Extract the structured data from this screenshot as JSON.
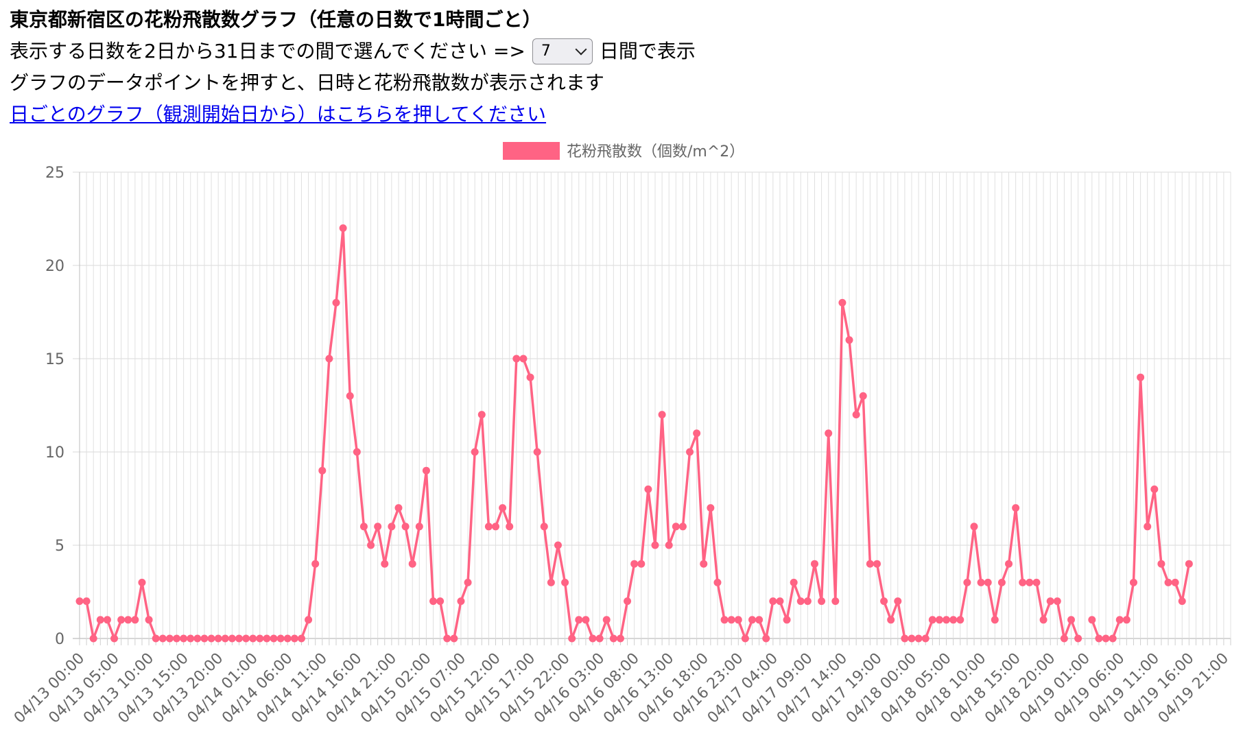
{
  "header": {
    "title": "東京都新宿区の花粉飛散数グラフ（任意の日数で1時間ごと）",
    "select_prefix": "表示する日数を2日から31日までの間で選んでください =>",
    "select_value": "7",
    "select_suffix": "日間で表示",
    "hint": "グラフのデータポイントを押すと、日時と花粉飛散数が表示されます",
    "daily_link": "日ごとのグラフ（観測開始日から）はこちらを押してください"
  },
  "colors": {
    "series": "#ff6384",
    "grid": "#e0e0e0",
    "axis_text": "#666666",
    "link": "#0000ee"
  },
  "chart_data": {
    "type": "line",
    "legend_position": "top",
    "grid": true,
    "series": [
      {
        "name": "花粉飛散数（個数/m^2）",
        "values": [
          2,
          2,
          0,
          1,
          1,
          0,
          1,
          1,
          1,
          3,
          1,
          0,
          0,
          0,
          0,
          0,
          0,
          0,
          0,
          0,
          0,
          0,
          0,
          0,
          0,
          0,
          0,
          0,
          0,
          0,
          0,
          0,
          0,
          1,
          4,
          9,
          15,
          18,
          22,
          13,
          10,
          6,
          5,
          6,
          4,
          6,
          7,
          6,
          4,
          6,
          9,
          2,
          2,
          0,
          0,
          2,
          3,
          10,
          12,
          6,
          6,
          7,
          6,
          15,
          15,
          14,
          10,
          6,
          3,
          5,
          3,
          0,
          1,
          1,
          0,
          0,
          1,
          0,
          0,
          2,
          4,
          4,
          8,
          5,
          12,
          5,
          6,
          6,
          10,
          11,
          4,
          7,
          3,
          1,
          1,
          1,
          0,
          1,
          1,
          0,
          2,
          2,
          1,
          3,
          2,
          2,
          4,
          2,
          11,
          2,
          18,
          16,
          12,
          13,
          4,
          4,
          2,
          1,
          2,
          0,
          0,
          0,
          0,
          1,
          1,
          1,
          1,
          1,
          3,
          6,
          3,
          3,
          1,
          3,
          4,
          7,
          3,
          3,
          3,
          1,
          2,
          2,
          0,
          1,
          0,
          null,
          1,
          0,
          0,
          0,
          1,
          1,
          3,
          14,
          6,
          8,
          4,
          3,
          3,
          2,
          4
        ]
      }
    ],
    "x_tick_labels": [
      "04/13 00:00",
      "04/13 05:00",
      "04/13 10:00",
      "04/13 15:00",
      "04/13 20:00",
      "04/14 01:00",
      "04/14 06:00",
      "04/14 11:00",
      "04/14 16:00",
      "04/14 21:00",
      "04/15 02:00",
      "04/15 07:00",
      "04/15 12:00",
      "04/15 17:00",
      "04/15 22:00",
      "04/16 03:00",
      "04/16 08:00",
      "04/16 13:00",
      "04/16 18:00",
      "04/16 23:00",
      "04/17 04:00",
      "04/17 09:00",
      "04/17 14:00",
      "04/17 19:00",
      "04/18 00:00",
      "04/18 05:00",
      "04/18 10:00",
      "04/18 15:00",
      "04/18 20:00",
      "04/19 01:00",
      "04/19 06:00",
      "04/19 11:00",
      "04/19 16:00",
      "04/19 21:00"
    ],
    "x_tick_step_hours": 5,
    "x_range_hours": [
      0,
      166
    ],
    "y_ticks": [
      0,
      5,
      10,
      15,
      20,
      25
    ],
    "ylim": [
      0,
      25
    ]
  }
}
